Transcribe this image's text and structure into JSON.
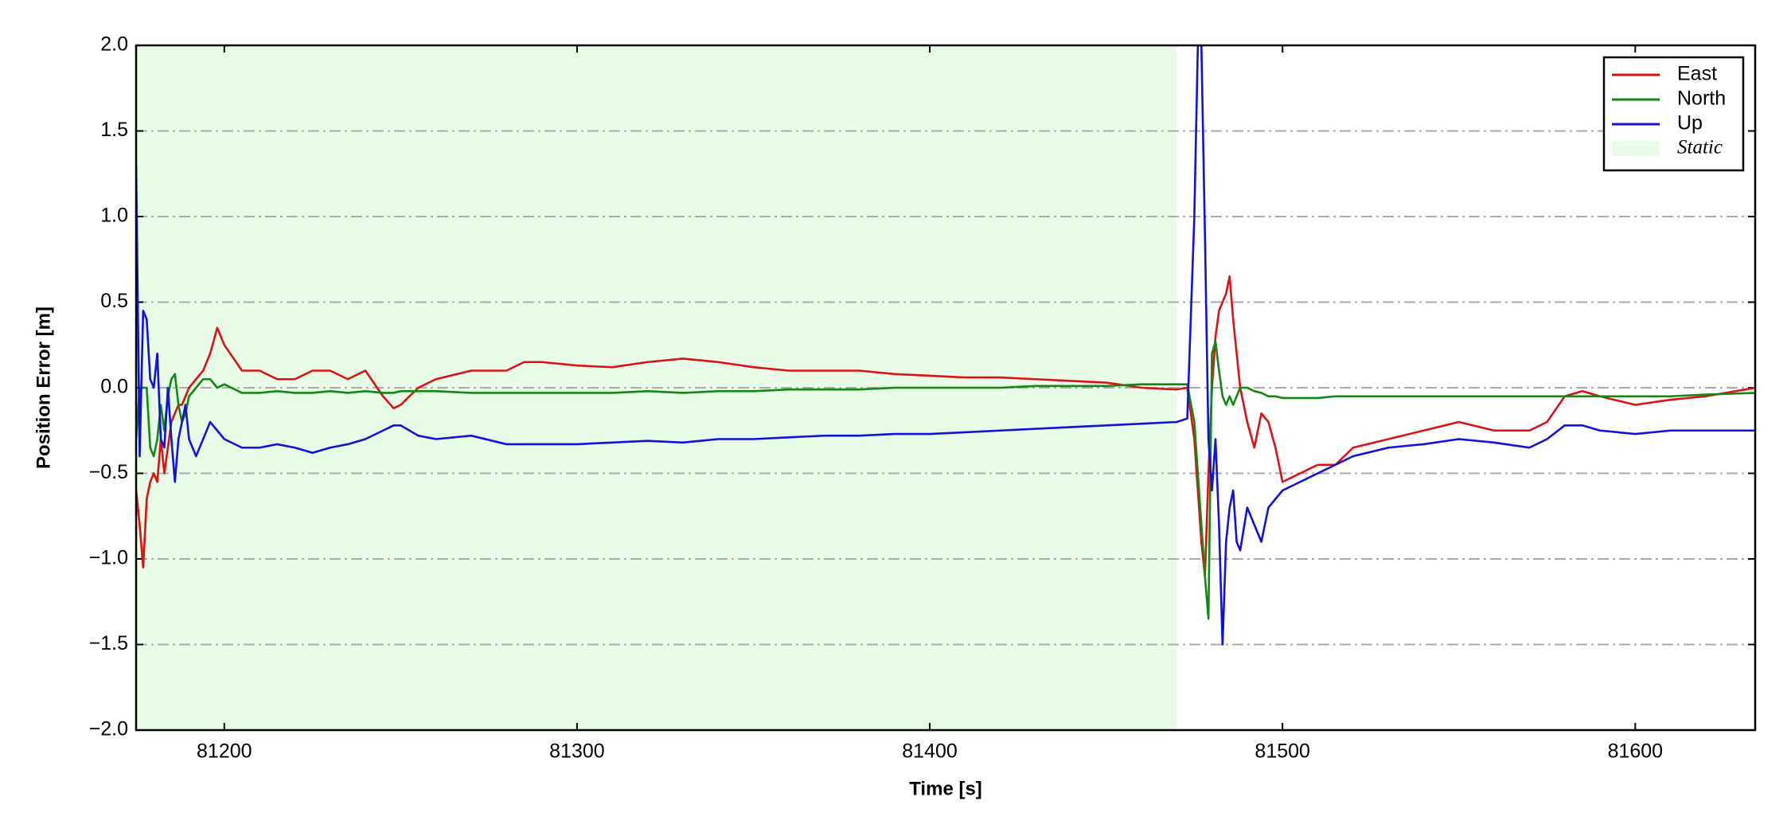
{
  "chart_data": {
    "type": "line",
    "xlabel": "Time [s]",
    "ylabel": "Position Error [m]",
    "xlim": [
      81175,
      81634
    ],
    "ylim": [
      -2.0,
      2.0
    ],
    "xticks": [
      81200,
      81300,
      81400,
      81500,
      81600
    ],
    "yticks": [
      {
        "value": -2.0,
        "label": "−2.0"
      },
      {
        "value": -1.5,
        "label": "−1.5"
      },
      {
        "value": -1.0,
        "label": "−1.0"
      },
      {
        "value": -0.5,
        "label": "−0.5"
      },
      {
        "value": 0.0,
        "label": "0.0"
      },
      {
        "value": 0.5,
        "label": "0.5"
      },
      {
        "value": 1.0,
        "label": "1.0"
      },
      {
        "value": 1.5,
        "label": "1.5"
      },
      {
        "value": 2.0,
        "label": "2.0"
      }
    ],
    "grid": true,
    "legend": "upper right",
    "static_region": {
      "name": "Static",
      "start": 81175,
      "end": 81470,
      "color": "#e8fce8"
    },
    "x": [
      81175,
      81176,
      81177,
      81178,
      81179,
      81180,
      81181,
      81182,
      81183,
      81184,
      81185,
      81186,
      81187,
      81188,
      81189,
      81190,
      81192,
      81194,
      81196,
      81198,
      81200,
      81205,
      81210,
      81215,
      81220,
      81225,
      81230,
      81235,
      81240,
      81245,
      81248,
      81250,
      81255,
      81260,
      81270,
      81280,
      81285,
      81290,
      81300,
      81310,
      81320,
      81330,
      81340,
      81350,
      81360,
      81370,
      81380,
      81390,
      81400,
      81410,
      81420,
      81430,
      81440,
      81450,
      81460,
      81470,
      81473,
      81475,
      81476,
      81477,
      81478,
      81479,
      81480,
      81481,
      81482,
      81483,
      81484,
      81485,
      81486,
      81487,
      81488,
      81490,
      81492,
      81494,
      81496,
      81498,
      81500,
      81505,
      81510,
      81515,
      81520,
      81530,
      81540,
      81550,
      81560,
      81570,
      81575,
      81580,
      81585,
      81590,
      81600,
      81610,
      81620,
      81634
    ],
    "series": [
      {
        "name": "East",
        "color": "#dd1111",
        "values": [
          -0.6,
          -0.8,
          -1.05,
          -0.65,
          -0.55,
          -0.5,
          -0.55,
          -0.3,
          -0.5,
          -0.35,
          -0.2,
          -0.15,
          -0.1,
          -0.1,
          -0.05,
          0.0,
          0.05,
          0.1,
          0.2,
          0.35,
          0.25,
          0.1,
          0.1,
          0.05,
          0.05,
          0.1,
          0.1,
          0.05,
          0.1,
          -0.05,
          -0.12,
          -0.1,
          0.0,
          0.05,
          0.1,
          0.1,
          0.15,
          0.15,
          0.13,
          0.12,
          0.15,
          0.17,
          0.15,
          0.12,
          0.1,
          0.1,
          0.1,
          0.08,
          0.07,
          0.06,
          0.06,
          0.05,
          0.04,
          0.03,
          0.0,
          -0.01,
          0.0,
          -0.3,
          -0.6,
          -0.9,
          -1.1,
          -0.5,
          0.0,
          0.3,
          0.45,
          0.5,
          0.55,
          0.65,
          0.4,
          0.2,
          0.0,
          -0.2,
          -0.35,
          -0.15,
          -0.2,
          -0.35,
          -0.55,
          -0.5,
          -0.45,
          -0.45,
          -0.35,
          -0.3,
          -0.25,
          -0.2,
          -0.25,
          -0.25,
          -0.2,
          -0.05,
          -0.02,
          -0.05,
          -0.1,
          -0.07,
          -0.05,
          0.0
        ]
      },
      {
        "name": "North",
        "color": "#118811",
        "values": [
          -0.3,
          0.0,
          0.0,
          0.0,
          -0.35,
          -0.4,
          -0.3,
          -0.1,
          -0.25,
          -0.05,
          0.05,
          0.08,
          -0.1,
          -0.2,
          -0.15,
          -0.05,
          0.0,
          0.05,
          0.05,
          0.0,
          0.02,
          -0.03,
          -0.03,
          -0.02,
          -0.03,
          -0.03,
          -0.02,
          -0.03,
          -0.02,
          -0.03,
          -0.03,
          -0.02,
          -0.02,
          -0.02,
          -0.03,
          -0.03,
          -0.03,
          -0.03,
          -0.03,
          -0.03,
          -0.02,
          -0.03,
          -0.02,
          -0.02,
          -0.01,
          -0.01,
          -0.01,
          0.0,
          0.0,
          0.0,
          0.0,
          0.01,
          0.01,
          0.01,
          0.02,
          0.02,
          0.02,
          -0.2,
          -0.5,
          -0.8,
          -1.1,
          -1.35,
          0.2,
          0.27,
          0.1,
          -0.05,
          -0.1,
          -0.05,
          -0.1,
          -0.05,
          0.0,
          0.0,
          -0.02,
          -0.03,
          -0.05,
          -0.05,
          -0.06,
          -0.06,
          -0.06,
          -0.05,
          -0.05,
          -0.05,
          -0.05,
          -0.05,
          -0.05,
          -0.05,
          -0.05,
          -0.05,
          -0.05,
          -0.05,
          -0.05,
          -0.05,
          -0.04,
          -0.03
        ]
      },
      {
        "name": "Up",
        "color": "#1111dd",
        "values": [
          1.3,
          -0.4,
          0.45,
          0.4,
          0.05,
          0.0,
          0.2,
          -0.3,
          -0.35,
          0.0,
          -0.3,
          -0.55,
          -0.3,
          -0.2,
          -0.1,
          -0.3,
          -0.4,
          -0.3,
          -0.2,
          -0.25,
          -0.3,
          -0.35,
          -0.35,
          -0.33,
          -0.35,
          -0.38,
          -0.35,
          -0.33,
          -0.3,
          -0.25,
          -0.22,
          -0.22,
          -0.28,
          -0.3,
          -0.28,
          -0.33,
          -0.33,
          -0.33,
          -0.33,
          -0.32,
          -0.31,
          -0.32,
          -0.3,
          -0.3,
          -0.29,
          -0.28,
          -0.28,
          -0.27,
          -0.27,
          -0.26,
          -0.25,
          -0.24,
          -0.23,
          -0.22,
          -0.21,
          -0.2,
          -0.18,
          1.0,
          2.0,
          2.0,
          0.9,
          -0.3,
          -0.6,
          -0.3,
          -0.8,
          -1.5,
          -0.9,
          -0.7,
          -0.6,
          -0.9,
          -0.95,
          -0.7,
          -0.8,
          -0.9,
          -0.7,
          -0.65,
          -0.6,
          -0.55,
          -0.5,
          -0.45,
          -0.4,
          -0.35,
          -0.33,
          -0.3,
          -0.32,
          -0.35,
          -0.3,
          -0.22,
          -0.22,
          -0.25,
          -0.27,
          -0.25,
          -0.25,
          -0.25
        ]
      }
    ]
  }
}
